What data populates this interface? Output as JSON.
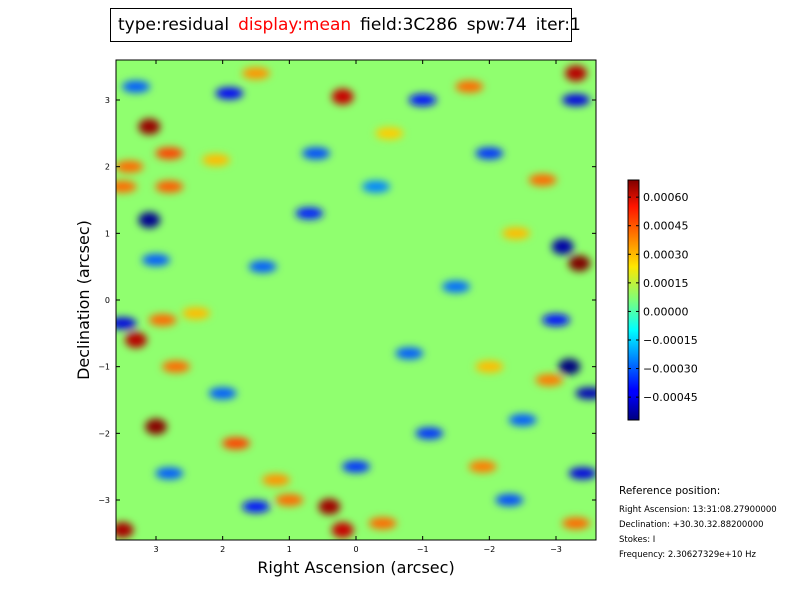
{
  "title_fields": [
    {
      "text": "type:residual",
      "color": "#000000"
    },
    {
      "text": "display:mean",
      "color": "#ff0000"
    },
    {
      "text": "field:3C286",
      "color": "#000000"
    },
    {
      "text": "spw:74",
      "color": "#000000"
    },
    {
      "text": "iter:1",
      "color": "#000000"
    }
  ],
  "reference": {
    "title": "Reference position:",
    "lines": [
      "Right Ascension: 13:31:08.27900000",
      "Declination: +30.30.32.88200000",
      "Stokes: I",
      "Frequency: 2.30627329e+10 Hz"
    ]
  },
  "chart_data": {
    "type": "heatmap",
    "xlabel": "Right Ascension (arcsec)",
    "ylabel": "Declination (arcsec)",
    "xlim": [
      3.6,
      -3.6
    ],
    "ylim": [
      -3.6,
      3.6
    ],
    "x_ticks": [
      3,
      2,
      1,
      0,
      -1,
      -2,
      -3
    ],
    "x_tick_labels": [
      "3",
      "2",
      "1",
      "0",
      "−1",
      "−2",
      "−3"
    ],
    "y_ticks": [
      3,
      2,
      1,
      0,
      -1,
      -2,
      -3
    ],
    "y_tick_labels": [
      "3",
      "2",
      "1",
      "0",
      "−1",
      "−2",
      "−3"
    ],
    "colorbar": {
      "colormap": "jet",
      "vmin": -0.00057,
      "vmax": 0.00069,
      "ticks": [
        0.0006,
        0.00045,
        0.0003,
        0.00015,
        0.0,
        -0.00015,
        -0.0003,
        -0.00045
      ],
      "tick_labels": [
        "0.00060",
        "0.00045",
        "0.00030",
        "0.00015",
        "0.00000",
        "−0.00015",
        "−0.00030",
        "−0.00045"
      ]
    },
    "background_value": 8e-05,
    "features": [
      {
        "x": 3.1,
        "y": 2.6,
        "value": 0.00066
      },
      {
        "x": 3.3,
        "y": -0.6,
        "value": 0.00062
      },
      {
        "x": 3.0,
        "y": -1.9,
        "value": 0.00068
      },
      {
        "x": 0.4,
        "y": -3.1,
        "value": 0.00065
      },
      {
        "x": 0.2,
        "y": -3.45,
        "value": 0.0006
      },
      {
        "x": 3.5,
        "y": -3.45,
        "value": 0.00064
      },
      {
        "x": -3.35,
        "y": 0.55,
        "value": 0.00069
      },
      {
        "x": -3.3,
        "y": 3.4,
        "value": 0.00062
      },
      {
        "x": 0.2,
        "y": 3.05,
        "value": 0.0006
      },
      {
        "x": 1.8,
        "y": -2.15,
        "value": 0.00045
      },
      {
        "x": 2.8,
        "y": 2.2,
        "value": 0.00045
      },
      {
        "x": 2.8,
        "y": 1.7,
        "value": 0.00042
      },
      {
        "x": 3.5,
        "y": 1.7,
        "value": 0.0004
      },
      {
        "x": 3.4,
        "y": 2.0,
        "value": 0.0004
      },
      {
        "x": 2.7,
        "y": -1.0,
        "value": 0.0004
      },
      {
        "x": 2.9,
        "y": -0.3,
        "value": 0.0004
      },
      {
        "x": -2.8,
        "y": 1.8,
        "value": 0.0004
      },
      {
        "x": -1.9,
        "y": -2.5,
        "value": 0.00038
      },
      {
        "x": -0.4,
        "y": -3.35,
        "value": 0.0004
      },
      {
        "x": -3.3,
        "y": -3.35,
        "value": 0.0004
      },
      {
        "x": 1.0,
        "y": -3.0,
        "value": 0.0004
      },
      {
        "x": 2.1,
        "y": 2.1,
        "value": 0.0003
      },
      {
        "x": -1.7,
        "y": 3.2,
        "value": 0.0004
      },
      {
        "x": -2.9,
        "y": -1.2,
        "value": 0.00038
      },
      {
        "x": 1.5,
        "y": 3.4,
        "value": 0.00035
      },
      {
        "x": 2.4,
        "y": -0.2,
        "value": 0.0003
      },
      {
        "x": -2.0,
        "y": -1.0,
        "value": 0.0003
      },
      {
        "x": -0.5,
        "y": 2.5,
        "value": 0.00028
      },
      {
        "x": 1.2,
        "y": -2.7,
        "value": 0.00035
      },
      {
        "x": -2.4,
        "y": 1.0,
        "value": 0.0003
      },
      {
        "x": 3.1,
        "y": 1.2,
        "value": -0.00055
      },
      {
        "x": -3.2,
        "y": -1.0,
        "value": -0.00057
      },
      {
        "x": -3.1,
        "y": 0.8,
        "value": -0.00052
      },
      {
        "x": 1.9,
        "y": 3.1,
        "value": -0.00042
      },
      {
        "x": -3.5,
        "y": -1.4,
        "value": -0.0005
      },
      {
        "x": -3.3,
        "y": 3.0,
        "value": -0.00045
      },
      {
        "x": 3.5,
        "y": -0.35,
        "value": -0.00045
      },
      {
        "x": -3.4,
        "y": -2.6,
        "value": -0.00045
      },
      {
        "x": -3.0,
        "y": -0.3,
        "value": -0.0004
      },
      {
        "x": -1.0,
        "y": 3.0,
        "value": -0.0004
      },
      {
        "x": 0.7,
        "y": 1.3,
        "value": -0.00038
      },
      {
        "x": 1.5,
        "y": -3.1,
        "value": -0.0004
      },
      {
        "x": -1.1,
        "y": -2.0,
        "value": -0.00035
      },
      {
        "x": 0.0,
        "y": -2.5,
        "value": -0.00035
      },
      {
        "x": 2.8,
        "y": -2.6,
        "value": -0.0003
      },
      {
        "x": -2.0,
        "y": 2.2,
        "value": -0.00035
      },
      {
        "x": 0.6,
        "y": 2.2,
        "value": -0.00032
      },
      {
        "x": 1.4,
        "y": 0.5,
        "value": -0.0003
      },
      {
        "x": -0.8,
        "y": -0.8,
        "value": -0.0003
      },
      {
        "x": 3.0,
        "y": 0.6,
        "value": -0.0003
      },
      {
        "x": -1.5,
        "y": 0.2,
        "value": -0.00028
      },
      {
        "x": 2.0,
        "y": -1.4,
        "value": -0.0003
      },
      {
        "x": -0.3,
        "y": 1.7,
        "value": -0.00025
      },
      {
        "x": -2.3,
        "y": -3.0,
        "value": -0.00032
      },
      {
        "x": 3.3,
        "y": 3.2,
        "value": -0.0003
      },
      {
        "x": -2.5,
        "y": -1.8,
        "value": -0.0003
      }
    ]
  }
}
